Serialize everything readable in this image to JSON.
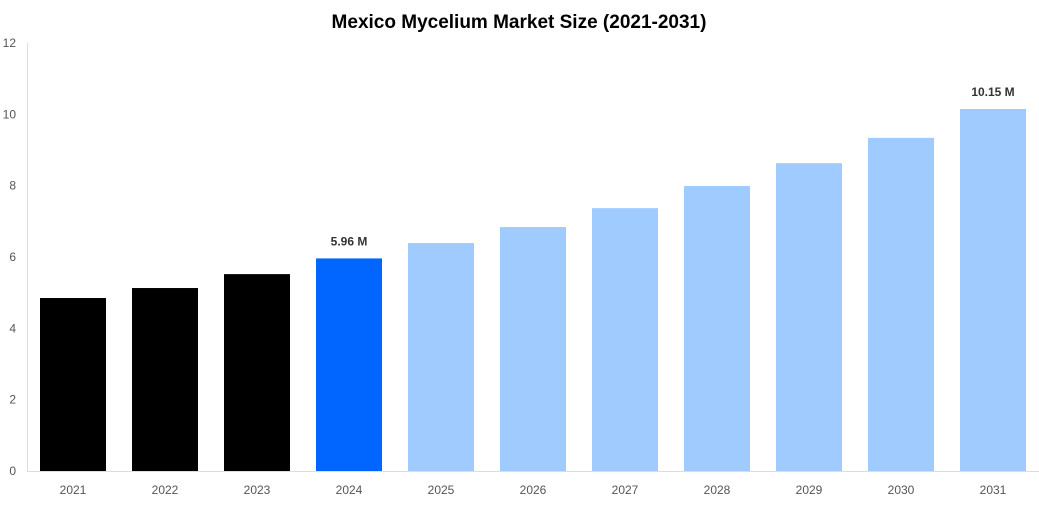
{
  "chart_data": {
    "type": "bar",
    "title": "Mexico Mycelium Market Size (2021-2031)",
    "xlabel": "",
    "ylabel": "",
    "categories": [
      "2021",
      "2022",
      "2023",
      "2024",
      "2025",
      "2026",
      "2027",
      "2028",
      "2029",
      "2030",
      "2031"
    ],
    "values": [
      4.85,
      5.13,
      5.52,
      5.96,
      6.39,
      6.84,
      7.37,
      7.99,
      8.63,
      9.34,
      10.15
    ],
    "bar_colors": [
      "#000000",
      "#000000",
      "#000000",
      "#0066ff",
      "#a0cbff",
      "#a0cbff",
      "#a0cbff",
      "#a0cbff",
      "#a0cbff",
      "#a0cbff",
      "#a0cbff"
    ],
    "data_labels": {
      "3": "5.96 M",
      "10": "10.15 M"
    },
    "ylim": [
      0,
      12
    ],
    "yticks": [
      0,
      2,
      4,
      6,
      8,
      10,
      12
    ],
    "grid": false,
    "legend": "none"
  }
}
